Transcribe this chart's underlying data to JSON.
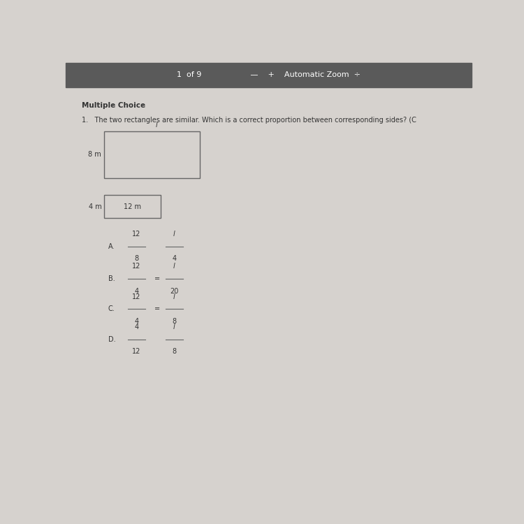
{
  "page_bg": "#d6d2ce",
  "header_bg": "#5a5a5a",
  "header_text": "1  of 9                    —    +    Automatic Zoom  ÷",
  "section_label": "Multiple Choice",
  "question": "1.   The two rectangles are similar. Which is a correct proportion between corresponding sides? (C",
  "rect1_label_left": "8 m",
  "rect1_label_top": "l",
  "rect2_label_left": "4 m",
  "rect2_label_inside": "12 m",
  "choices": [
    {
      "letter": "A.",
      "n1": "12",
      "d1": "8",
      "n2": "l",
      "d2": "4",
      "has_eq_line": false
    },
    {
      "letter": "B.",
      "n1": "12",
      "d1": "4",
      "n2": "l",
      "d2": "20",
      "has_eq_line": true
    },
    {
      "letter": "C.",
      "n1": "12",
      "d1": "4",
      "n2": "l",
      "d2": "8",
      "has_eq_line": true
    },
    {
      "letter": "D.",
      "n1": "4",
      "d1": "12",
      "n2": "l",
      "d2": "8",
      "has_eq_line": false
    }
  ],
  "fraction_line_color": "#666666",
  "text_color": "#333333",
  "rect_edge_color": "#666666"
}
